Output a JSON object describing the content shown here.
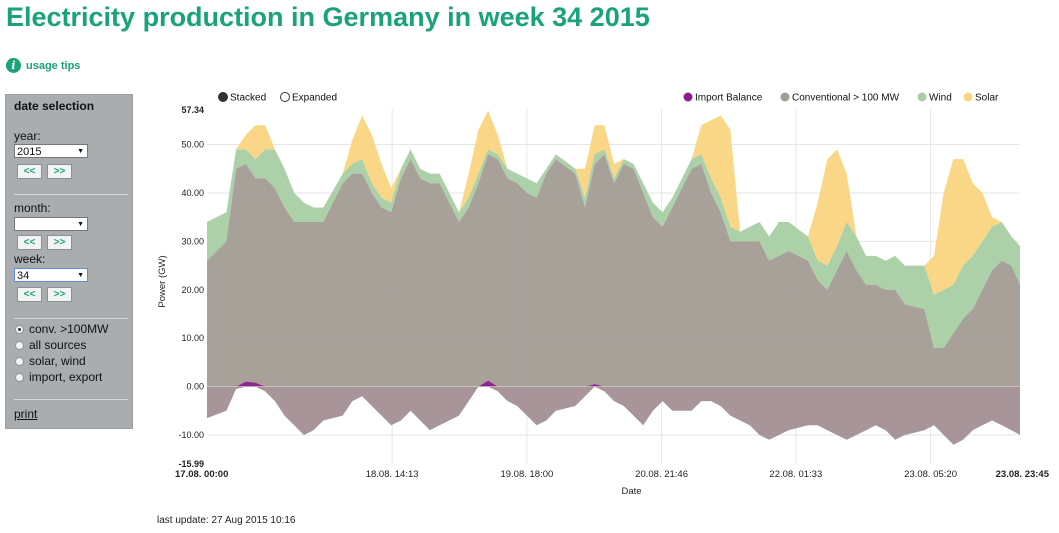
{
  "page": {
    "title": "Electricity production in Germany in week 34 2015",
    "usage_tips": "usage tips",
    "last_update": "last update: 27 Aug 2015 10:16"
  },
  "panel": {
    "title": "date selection",
    "year_label": "year:",
    "year_value": "2015",
    "month_label": "month:",
    "month_value": "",
    "week_label": "week:",
    "week_value": "34",
    "prev": "<<",
    "next": ">>",
    "radios": [
      {
        "label": "conv. >100MW",
        "checked": true
      },
      {
        "label": "all sources",
        "checked": false
      },
      {
        "label": "solar, wind",
        "checked": false
      },
      {
        "label": "import, export",
        "checked": false
      }
    ],
    "print": "print"
  },
  "chart_data": {
    "type": "area",
    "ylabel": "Power (GW)",
    "xlabel": "Date",
    "ylim": [
      -15.99,
      57.34
    ],
    "y_ticks": [
      "57.34",
      "50.00",
      "40.00",
      "30.00",
      "20.00",
      "10.00",
      "0.00",
      "-10.00",
      "-15.99"
    ],
    "x_ticks": [
      "17.08. 00:00",
      "18.08. 14:13",
      "19.08. 18:00",
      "20.08. 21:46",
      "22.08. 01:33",
      "23.08. 05:20",
      "23.08. 23:45"
    ],
    "x_tick_hours": [
      0,
      38.2,
      66,
      93.8,
      121.5,
      149.3,
      167.75
    ],
    "x_range_hours": [
      0,
      167.75
    ],
    "mode_toggle": [
      {
        "label": "Stacked",
        "selected": true
      },
      {
        "label": "Expanded",
        "selected": false
      }
    ],
    "legend_position": "top-right",
    "x_hours": [
      0,
      4,
      6,
      8,
      10,
      12,
      14,
      16,
      18,
      20,
      22,
      24,
      28,
      30,
      32,
      34,
      36,
      38,
      40,
      42,
      44,
      46,
      48,
      52,
      54,
      56,
      58,
      60,
      62,
      64,
      66,
      68,
      70,
      72,
      76,
      78,
      80,
      82,
      84,
      86,
      88,
      90,
      92,
      94,
      96,
      100,
      102,
      104,
      106,
      108,
      110,
      112,
      114,
      116,
      118,
      120,
      124,
      126,
      128,
      130,
      132,
      134,
      136,
      138,
      140,
      142,
      144,
      148,
      150,
      152,
      154,
      156,
      158,
      160,
      162,
      164,
      166,
      167.75
    ],
    "series": [
      {
        "name": "Import Balance",
        "color": "#8e1f8e",
        "values": [
          -6.5,
          -5,
          -0.5,
          1,
          0.8,
          -1,
          -3,
          -6,
          -8,
          -10,
          -9,
          -7,
          -6,
          -3,
          -2,
          -4,
          -6,
          -8,
          -7,
          -5,
          -7,
          -9,
          -8,
          -6,
          -3,
          0,
          1.2,
          -1,
          -3,
          -4,
          -6,
          -8,
          -7,
          -5,
          -4,
          -2,
          0.5,
          -1,
          -3,
          -4,
          -6,
          -8,
          -5,
          -3,
          -5,
          -5,
          -3,
          -3,
          -4,
          -6,
          -7,
          -8,
          -10,
          -11,
          -10,
          -9,
          -8,
          -8,
          -9,
          -10,
          -11,
          -10,
          -9,
          -8,
          -9,
          -11,
          -10,
          -9,
          -8,
          -10,
          -12,
          -11,
          -9,
          -8,
          -7,
          -8,
          -9,
          -10
        ]
      },
      {
        "name": "Conventional > 100 MW",
        "color": "#a39c95",
        "values": [
          26,
          30,
          45,
          46,
          43,
          43,
          41,
          37,
          34,
          34,
          34,
          34,
          42,
          44,
          44,
          40,
          37,
          36,
          43,
          47,
          43,
          42,
          42,
          34,
          37,
          42,
          48,
          47,
          43,
          42,
          40,
          39,
          44,
          47,
          44,
          37,
          46,
          48,
          42,
          46,
          45,
          40,
          35,
          33,
          37,
          45,
          46,
          40,
          36,
          30,
          30,
          30,
          30,
          26,
          27,
          28,
          26,
          22,
          20,
          24,
          28,
          24,
          21,
          21,
          20,
          20,
          17,
          16,
          8,
          8,
          11,
          14,
          16,
          20,
          24,
          26,
          25,
          21
        ]
      },
      {
        "name": "Wind",
        "color": "#a8cfa3",
        "values": [
          8,
          6,
          4,
          3,
          4,
          6,
          8,
          8,
          6,
          4,
          3,
          3,
          2,
          2,
          3,
          2,
          2,
          2,
          2,
          2,
          2,
          2,
          2,
          2,
          2,
          2,
          1,
          1,
          2,
          2,
          3,
          3,
          1,
          1,
          1,
          2,
          2,
          1,
          1,
          1,
          1,
          2,
          3,
          3,
          2,
          2,
          2,
          3,
          3,
          3,
          2,
          3,
          4,
          5,
          7,
          6,
          5,
          4,
          5,
          5,
          6,
          7,
          6,
          6,
          6,
          7,
          8,
          9,
          11,
          12,
          10,
          11,
          11,
          10,
          9,
          8,
          6,
          8
        ]
      },
      {
        "name": "Solar",
        "color": "#f9d57f",
        "values": [
          0,
          0,
          0,
          3,
          7,
          5,
          0,
          0,
          0,
          0,
          0,
          0,
          0,
          5,
          9,
          10,
          7,
          3,
          0,
          0,
          0,
          0,
          0,
          0,
          5,
          9,
          8,
          4,
          0,
          0,
          0,
          0,
          0,
          0,
          0,
          6,
          6,
          5,
          3,
          0,
          0,
          0,
          0,
          0,
          0,
          0,
          6,
          12,
          17,
          20,
          0,
          0,
          0,
          0,
          0,
          0,
          0,
          12,
          22,
          20,
          10,
          0,
          0,
          0,
          0,
          0,
          0,
          0,
          8,
          20,
          26,
          22,
          15,
          10,
          2,
          0,
          0,
          0
        ]
      }
    ]
  }
}
